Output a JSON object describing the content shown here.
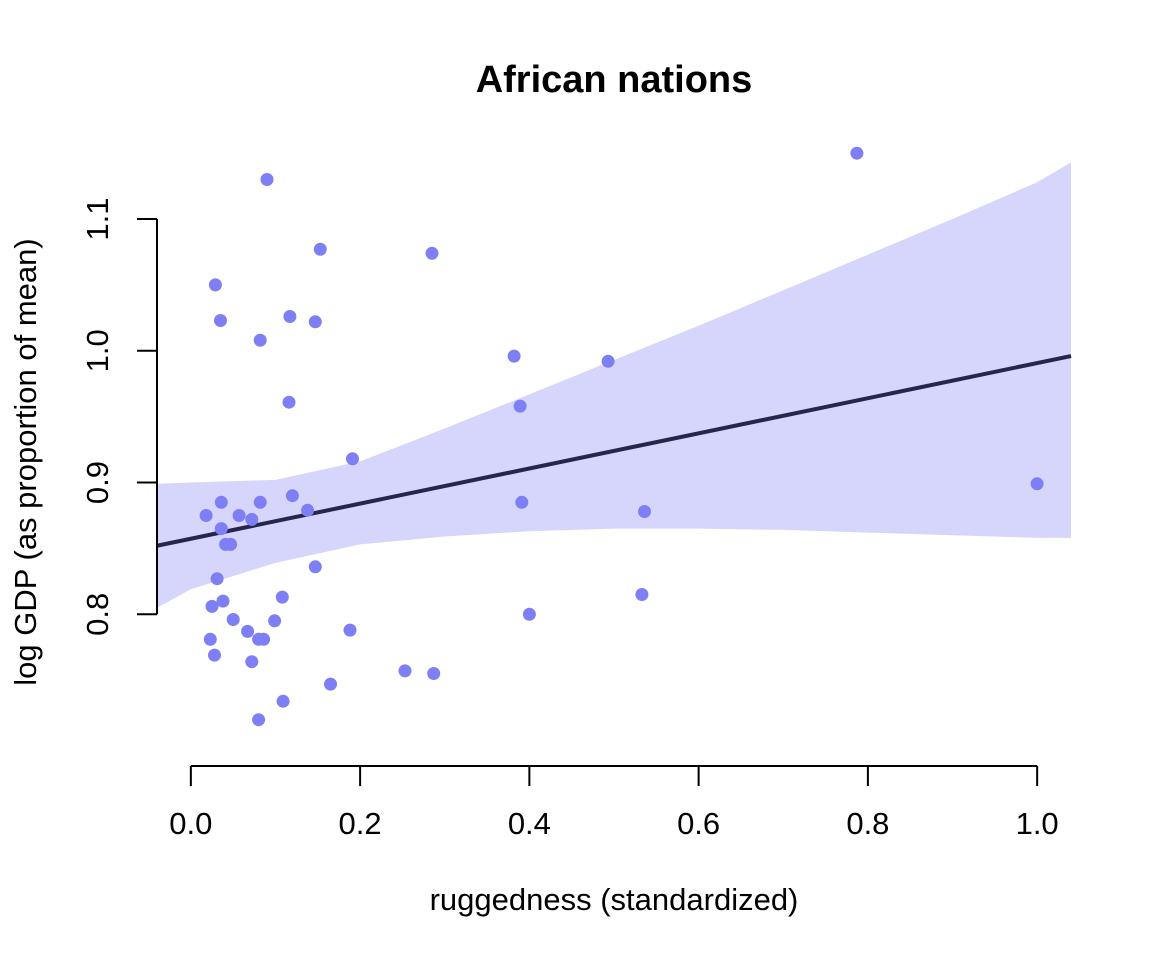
{
  "chart_data": {
    "type": "scatter",
    "title": "African nations",
    "xlabel": "ruggedness (standardized)",
    "ylabel": "log GDP (as proportion of mean)",
    "xlim": [
      -0.04,
      1.04
    ],
    "ylim": [
      0.7,
      1.16
    ],
    "x_ticks": [
      0.0,
      0.2,
      0.4,
      0.6,
      0.8,
      1.0
    ],
    "x_tick_labels": [
      "0.0",
      "0.2",
      "0.4",
      "0.6",
      "0.8",
      "1.0"
    ],
    "y_ticks": [
      0.8,
      0.9,
      1.0,
      1.1
    ],
    "y_tick_labels": [
      "0.8",
      "0.9",
      "1.0",
      "1.1"
    ],
    "grid": false,
    "colors": {
      "points": "#7f7ff5",
      "band": "#d6d6fc",
      "line": "#26264a"
    },
    "regression_line": {
      "x": [
        -0.04,
        1.04
      ],
      "y": [
        0.852,
        0.996
      ]
    },
    "confidence_band": {
      "x": [
        -0.04,
        0.0,
        0.1,
        0.2,
        0.3,
        0.4,
        0.5,
        0.6,
        0.7,
        0.8,
        0.9,
        1.0,
        1.04
      ],
      "lower": [
        0.805,
        0.819,
        0.839,
        0.853,
        0.859,
        0.863,
        0.865,
        0.865,
        0.864,
        0.862,
        0.86,
        0.858,
        0.858
      ],
      "upper": [
        0.899,
        0.9,
        0.902,
        0.916,
        0.941,
        0.967,
        0.993,
        1.019,
        1.046,
        1.073,
        1.1,
        1.128,
        1.143
      ]
    },
    "series": [
      {
        "x": [
          0.09,
          0.787,
          0.153,
          0.285,
          0.029,
          0.035,
          0.117,
          0.147,
          0.082,
          0.382,
          0.493,
          0.116,
          0.389,
          0.191,
          1.0,
          0.018,
          0.036,
          0.082,
          0.12,
          0.138,
          0.391,
          0.536,
          0.057,
          0.072,
          0.036,
          0.041,
          0.047,
          0.031,
          0.147,
          0.025,
          0.038,
          0.108,
          0.533,
          0.4,
          0.05,
          0.099,
          0.067,
          0.188,
          0.023,
          0.08,
          0.086,
          0.028,
          0.072,
          0.253,
          0.287,
          0.165,
          0.109,
          0.08
        ],
        "y": [
          1.13,
          1.15,
          1.077,
          1.074,
          1.05,
          1.023,
          1.026,
          1.022,
          1.008,
          0.996,
          0.992,
          0.961,
          0.958,
          0.918,
          0.899,
          0.875,
          0.885,
          0.885,
          0.89,
          0.879,
          0.885,
          0.878,
          0.875,
          0.872,
          0.865,
          0.853,
          0.853,
          0.827,
          0.836,
          0.806,
          0.81,
          0.813,
          0.815,
          0.8,
          0.796,
          0.795,
          0.787,
          0.788,
          0.781,
          0.781,
          0.781,
          0.769,
          0.764,
          0.757,
          0.755,
          0.747,
          0.734,
          0.72
        ]
      }
    ]
  }
}
